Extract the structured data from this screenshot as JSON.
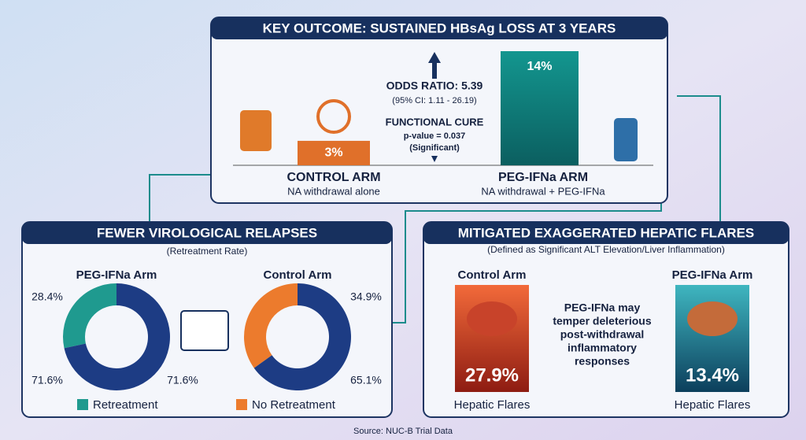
{
  "top": {
    "title": "KEY OUTCOME: SUSTAINED HBsAg LOSS AT 3 YEARS",
    "bars": [
      {
        "label": "CONTROL ARM",
        "sublabel": "NA withdrawal alone",
        "value": 3,
        "value_label": "3%",
        "color": "#e0702a"
      },
      {
        "label": "PEG-IFNa ARM",
        "sublabel": "NA withdrawal + PEG-IFNa",
        "value": 14,
        "value_label": "14%",
        "color": "#12837f"
      }
    ],
    "odds_ratio": "ODDS RATIO: 5.39",
    "ci": "(95% CI: 1.11 - 26.19)",
    "cure": "FUNCTIONAL CURE",
    "p_value": "p-value = 0.037",
    "significance": "(Significant)"
  },
  "relapses": {
    "title": "FEWER VIROLOGICAL RELAPSES",
    "subtitle": "(Retreatment Rate)",
    "donuts": [
      {
        "name": "PEG-IFNa Arm",
        "values": [
          28.4,
          71.6
        ],
        "value_labels": [
          "28.4%",
          "71.6%"
        ],
        "extra_label": "71.6%",
        "colors": [
          "#1f9a8f",
          "#1d3c84"
        ]
      },
      {
        "name": "Control Arm",
        "values": [
          34.9,
          65.1
        ],
        "value_labels": [
          "34.9%",
          "65.1%"
        ],
        "colors": [
          "#ec7b2d",
          "#1d3c84"
        ]
      }
    ],
    "legend": [
      {
        "name": "Retreatment",
        "color": "#1f9a8f"
      },
      {
        "name": "No Retreatment",
        "color": "#ec7b2d"
      }
    ]
  },
  "flares": {
    "title": "MITIGATED EXAGGERATED HEPATIC FLARES",
    "subtitle": "(Defined as Significant ALT Elevation/Liver Inflammation)",
    "arms": [
      {
        "name": "Control Arm",
        "value_label": "27.9%",
        "caption": "Hepatic Flares"
      },
      {
        "name": "PEG-IFNa Arm",
        "value_label": "13.4%",
        "caption": "Hepatic Flares"
      }
    ],
    "note": [
      "PEG-IFNa may",
      "temper deleterious",
      "post-withdrawal",
      "inflammatory",
      "responses"
    ]
  },
  "source": "Source: NUC-B Trial Data"
}
